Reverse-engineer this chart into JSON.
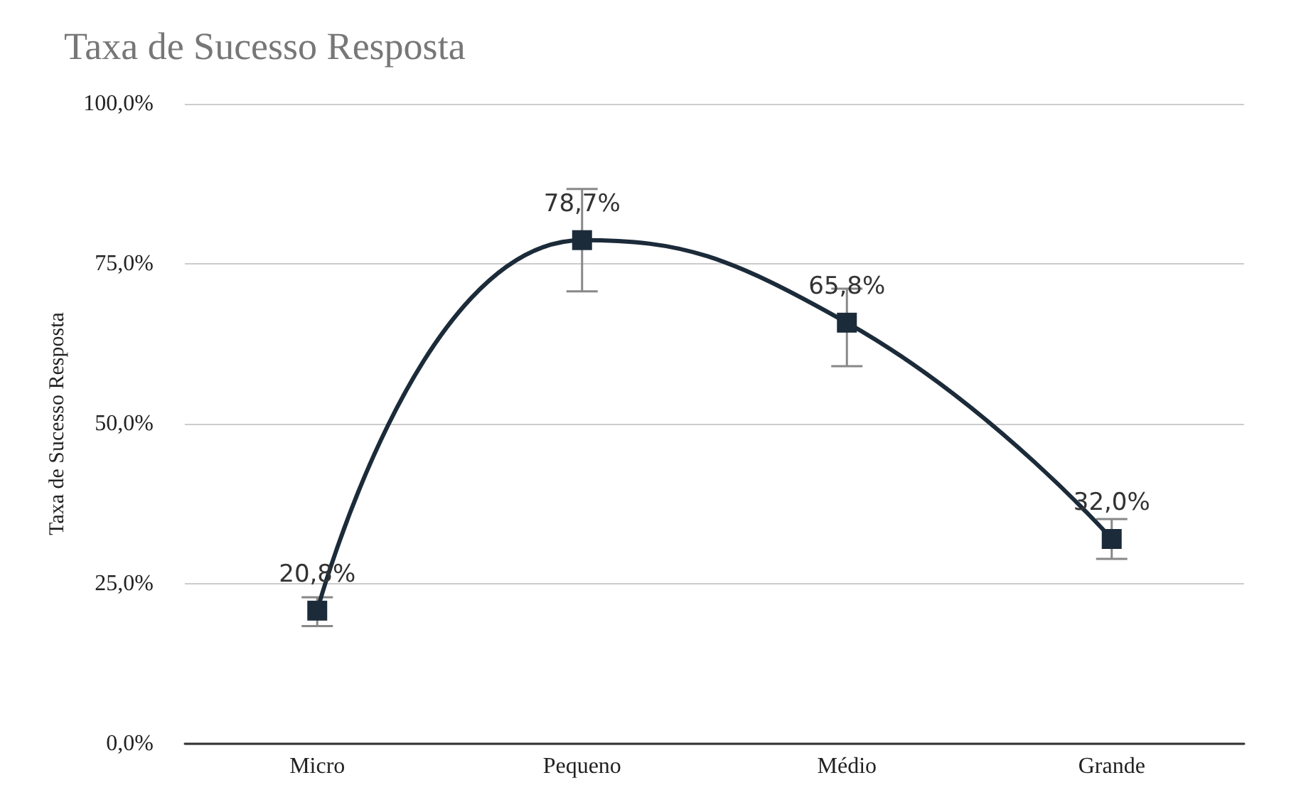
{
  "chart_data": {
    "type": "line",
    "title": "Taxa de Sucesso Resposta",
    "ylabel": "Taxa de Sucesso Resposta",
    "categories": [
      "Micro",
      "Pequeno",
      "Médio",
      "Grande"
    ],
    "series": [
      {
        "color": "#1c2b39",
        "values": [
          20.8,
          78.7,
          65.8,
          32.0
        ],
        "value_labels": [
          "20,8%",
          "78,7%",
          "65,8%",
          "32,0%"
        ],
        "errors": [
          [
            18.4,
            22.9
          ],
          [
            70.7,
            86.7
          ],
          [
            59.0,
            71.1
          ],
          [
            28.9,
            35.1
          ]
        ]
      }
    ],
    "ylim": [
      0,
      100
    ],
    "yticks": [
      {
        "value": 0,
        "label": "0,0%"
      },
      {
        "value": 25,
        "label": "25,0%"
      },
      {
        "value": 50,
        "label": "50,0%"
      },
      {
        "value": 75,
        "label": "75,0%"
      },
      {
        "value": 100,
        "label": "100,0%"
      }
    ],
    "grid": "y",
    "marker": "square",
    "line_style": "solid"
  }
}
